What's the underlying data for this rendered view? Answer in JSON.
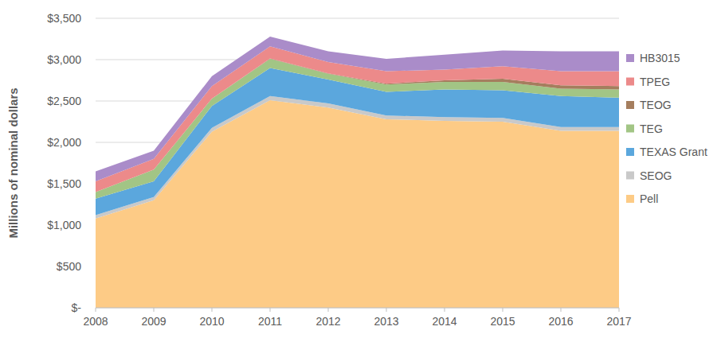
{
  "chart_data": {
    "type": "area",
    "stacked": true,
    "y_label": "Millions of nominal dollars",
    "x": [
      2008,
      2009,
      2010,
      2011,
      2012,
      2013,
      2014,
      2015,
      2016,
      2017
    ],
    "xlim": [
      2008,
      2017
    ],
    "xticks": [
      2008,
      2009,
      2010,
      2011,
      2012,
      2013,
      2014,
      2015,
      2016,
      2017
    ],
    "ylim": [
      0,
      3500
    ],
    "yticks": [
      {
        "value": 0,
        "label": "$-"
      },
      {
        "value": 500,
        "label": "$500"
      },
      {
        "value": 1000,
        "label": "$1,000"
      },
      {
        "value": 1500,
        "label": "$1,500"
      },
      {
        "value": 2000,
        "label": "$2,000"
      },
      {
        "value": 2500,
        "label": "$2,500"
      },
      {
        "value": 3000,
        "label": "$3,000"
      },
      {
        "value": 3500,
        "label": "$3,500"
      }
    ],
    "grid": true,
    "legend": "right",
    "series": [
      {
        "name": "Pell",
        "color": "#fdcb86",
        "values": [
          1080,
          1300,
          2130,
          2510,
          2420,
          2280,
          2260,
          2250,
          2140,
          2140
        ]
      },
      {
        "name": "SEOG",
        "color": "#c9c9c9",
        "values": [
          40,
          40,
          45,
          50,
          50,
          45,
          45,
          45,
          45,
          45
        ]
      },
      {
        "name": "TEXAS Grant",
        "color": "#5ba7dd",
        "values": [
          200,
          190,
          265,
          340,
          290,
          285,
          335,
          335,
          375,
          355
        ]
      },
      {
        "name": "TEG",
        "color": "#a2c585",
        "values": [
          80,
          140,
          90,
          110,
          70,
          90,
          90,
          100,
          90,
          100
        ]
      },
      {
        "name": "TEOG",
        "color": "#a57e5e",
        "values": [
          0,
          0,
          0,
          5,
          5,
          10,
          20,
          40,
          40,
          40
        ]
      },
      {
        "name": "TPEG",
        "color": "#ec8a8a",
        "values": [
          130,
          130,
          150,
          145,
          135,
          150,
          130,
          150,
          170,
          180
        ]
      },
      {
        "name": "HB3015",
        "color": "#aa8cc9",
        "values": [
          120,
          100,
          120,
          120,
          130,
          150,
          180,
          190,
          240,
          240
        ]
      }
    ]
  }
}
